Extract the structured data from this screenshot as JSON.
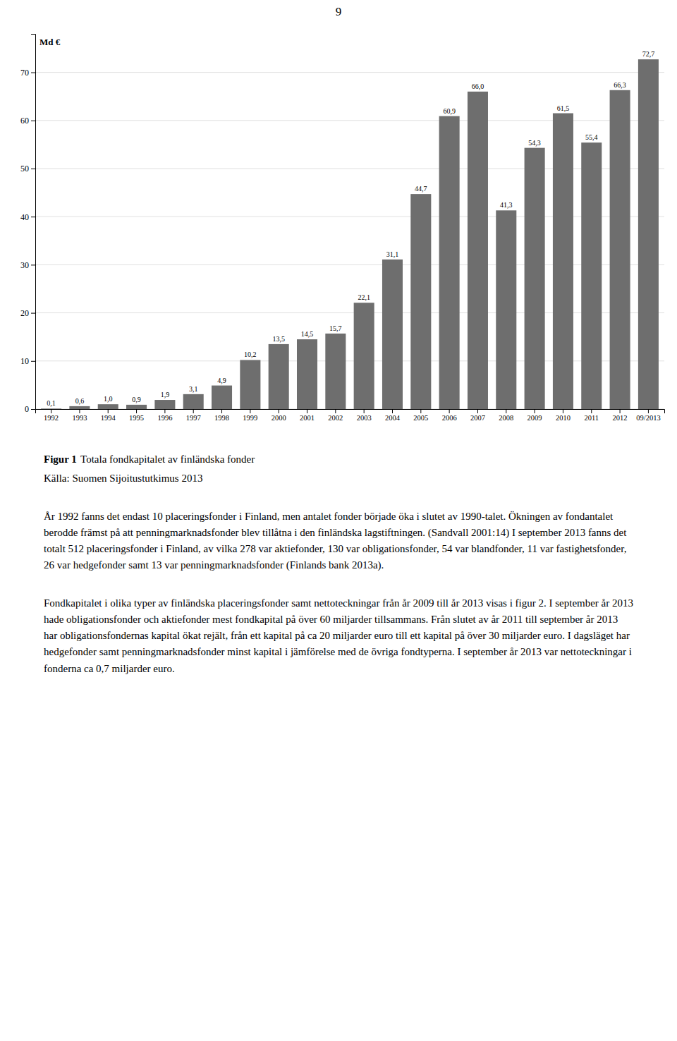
{
  "page_number": "9",
  "figure_label": "Figur 1",
  "figure_caption": "Totala fondkapitalet av finländska fonder",
  "source": "Källa: Suomen Sijoitustutkimus 2013",
  "paragraphs": [
    "År 1992 fanns det endast 10 placeringsfonder i Finland, men antalet fonder började öka i slutet av 1990-talet. Ökningen av fondantalet berodde främst på att penningmarknadsfonder blev tillåtna i den finländska lagstiftningen. (Sandvall 2001:14) I september 2013 fanns det totalt 512 placeringsfonder i Finland, av vilka 278 var aktiefonder, 130 var obligationsfonder, 54 var blandfonder, 11 var fastighetsfonder, 26 var hedgefonder samt 13 var penningmarknadsfonder (Finlands bank 2013a).",
    "Fondkapitalet i olika typer av finländska placeringsfonder samt nettoteckningar från år 2009 till år 2013 visas i figur 2. I september år 2013 hade obligationsfonder och aktiefonder mest fondkapital på över 60 miljarder tillsammans. Från slutet av år 2011 till september år 2013 har obligationsfondernas kapital ökat rejält, från ett kapital på ca 20 miljarder euro till ett kapital på över 30 miljarder euro. I dagsläget har hedgefonder samt penningmarknadsfonder minst kapital i jämförelse med de övriga fondtyperna. I september år 2013 var nettoteckningar i fonderna ca 0,7 miljarder euro."
  ],
  "chart_data": {
    "type": "bar",
    "ylabel": "Md €",
    "categories": [
      "1992",
      "1993",
      "1994",
      "1995",
      "1996",
      "1997",
      "1998",
      "1999",
      "2000",
      "2001",
      "2002",
      "2003",
      "2004",
      "2005",
      "2006",
      "2007",
      "2008",
      "2009",
      "2010",
      "2011",
      "2012",
      "09/2013"
    ],
    "values": [
      0.1,
      0.6,
      1.0,
      0.9,
      1.9,
      3.1,
      4.9,
      10.2,
      13.5,
      14.5,
      15.7,
      22.1,
      31.1,
      44.7,
      60.9,
      66.0,
      41.3,
      54.3,
      61.5,
      55.4,
      66.3,
      72.7
    ],
    "value_labels": [
      "0,1",
      "0,6",
      "1,0",
      "0,9",
      "1,9",
      "3,1",
      "4,9",
      "10,2",
      "13,5",
      "14,5",
      "15,7",
      "22,1",
      "31,1",
      "44,7",
      "60,9",
      "66,0",
      "41,3",
      "54,3",
      "61,5",
      "55,4",
      "66,3",
      "72,7"
    ],
    "data_labels": true,
    "color": "#6e6e6e",
    "ylim": [
      0,
      78
    ],
    "yticks": [
      0,
      10,
      20,
      30,
      40,
      50,
      60,
      70
    ],
    "grid": true
  }
}
